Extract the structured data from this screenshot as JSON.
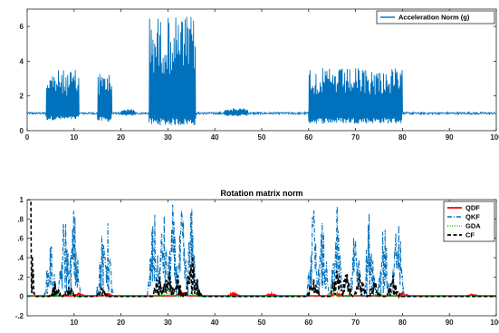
{
  "chart_data": [
    {
      "type": "line",
      "title": "",
      "xlabel": "",
      "ylabel": "",
      "xlim": [
        0,
        100
      ],
      "ylim": [
        0,
        7
      ],
      "xticks": [
        0,
        10,
        20,
        30,
        40,
        50,
        60,
        70,
        80,
        90,
        100
      ],
      "yticks": [
        0,
        2,
        4,
        6
      ],
      "grid": false,
      "legend_position": "top-right",
      "series": [
        {
          "name": "Acceleration Norm (g)",
          "color": "#0072BD",
          "style": "solid",
          "baseline": 1.0,
          "segments": [
            {
              "x": [
                4,
                11
              ],
              "low": 0.6,
              "high": 3.5
            },
            {
              "x": [
                15,
                18
              ],
              "low": 0.5,
              "high": 3.4
            },
            {
              "x": [
                20,
                23
              ],
              "low": 0.85,
              "high": 1.25
            },
            {
              "x": [
                26,
                36
              ],
              "low": 0.3,
              "high": 6.6
            },
            {
              "x": [
                42,
                47
              ],
              "low": 0.85,
              "high": 1.3
            },
            {
              "x": [
                60,
                80
              ],
              "low": 0.4,
              "high": 3.6
            }
          ]
        }
      ]
    },
    {
      "type": "line",
      "title": "Rotation matrix norm",
      "xlabel": "",
      "ylabel": "",
      "xlim": [
        0,
        100
      ],
      "ylim": [
        -0.2,
        1
      ],
      "xticks": [
        10,
        20,
        30,
        40,
        50,
        60,
        70,
        80,
        90,
        100
      ],
      "yticks": [
        -0.2,
        0,
        0.2,
        0.4,
        0.6,
        0.8,
        1
      ],
      "grid": false,
      "legend_position": "top-right",
      "series": [
        {
          "name": "QDF",
          "color": "#FF0000",
          "style": "solid",
          "peaks": [
            [
              11,
              0.03
            ],
            [
              17,
              0.03
            ],
            [
              33,
              0.05
            ],
            [
              44,
              0.04
            ],
            [
              52,
              0.03
            ],
            [
              66,
              0.05
            ],
            [
              80,
              0.04
            ],
            [
              95,
              0.02
            ]
          ]
        },
        {
          "name": "QKF",
          "color": "#0072BD",
          "style": "dashdot",
          "peaks": [
            [
              5,
              0.65
            ],
            [
              8,
              1.0
            ],
            [
              10,
              1.0
            ],
            [
              16,
              0.7
            ],
            [
              17,
              0.9
            ],
            [
              27,
              1.0
            ],
            [
              29,
              1.0
            ],
            [
              31,
              1.0
            ],
            [
              33,
              1.0
            ],
            [
              35,
              1.0
            ],
            [
              61,
              1.0
            ],
            [
              63,
              0.85
            ],
            [
              66,
              1.0
            ],
            [
              70,
              0.95
            ],
            [
              73,
              1.0
            ],
            [
              76,
              0.9
            ],
            [
              79,
              1.0
            ]
          ]
        },
        {
          "name": "GDA",
          "color": "#00CC00",
          "style": "dotted",
          "peaks": [
            [
              9,
              0.05
            ],
            [
              30,
              0.15
            ],
            [
              35,
              0.1
            ],
            [
              65,
              0.1
            ],
            [
              75,
              0.06
            ]
          ]
        },
        {
          "name": "CF",
          "color": "#000000",
          "style": "dashed",
          "peaks": [
            [
              0.3,
              1.0
            ],
            [
              6,
              0.15
            ],
            [
              9,
              0.12
            ],
            [
              16,
              0.1
            ],
            [
              28,
              0.25
            ],
            [
              30,
              0.35
            ],
            [
              32,
              0.22
            ],
            [
              35,
              0.55
            ],
            [
              36,
              0.25
            ],
            [
              61,
              0.2
            ],
            [
              66,
              0.38
            ],
            [
              68,
              0.3
            ],
            [
              71,
              0.28
            ],
            [
              74,
              0.2
            ],
            [
              78,
              0.22
            ]
          ]
        }
      ]
    }
  ]
}
